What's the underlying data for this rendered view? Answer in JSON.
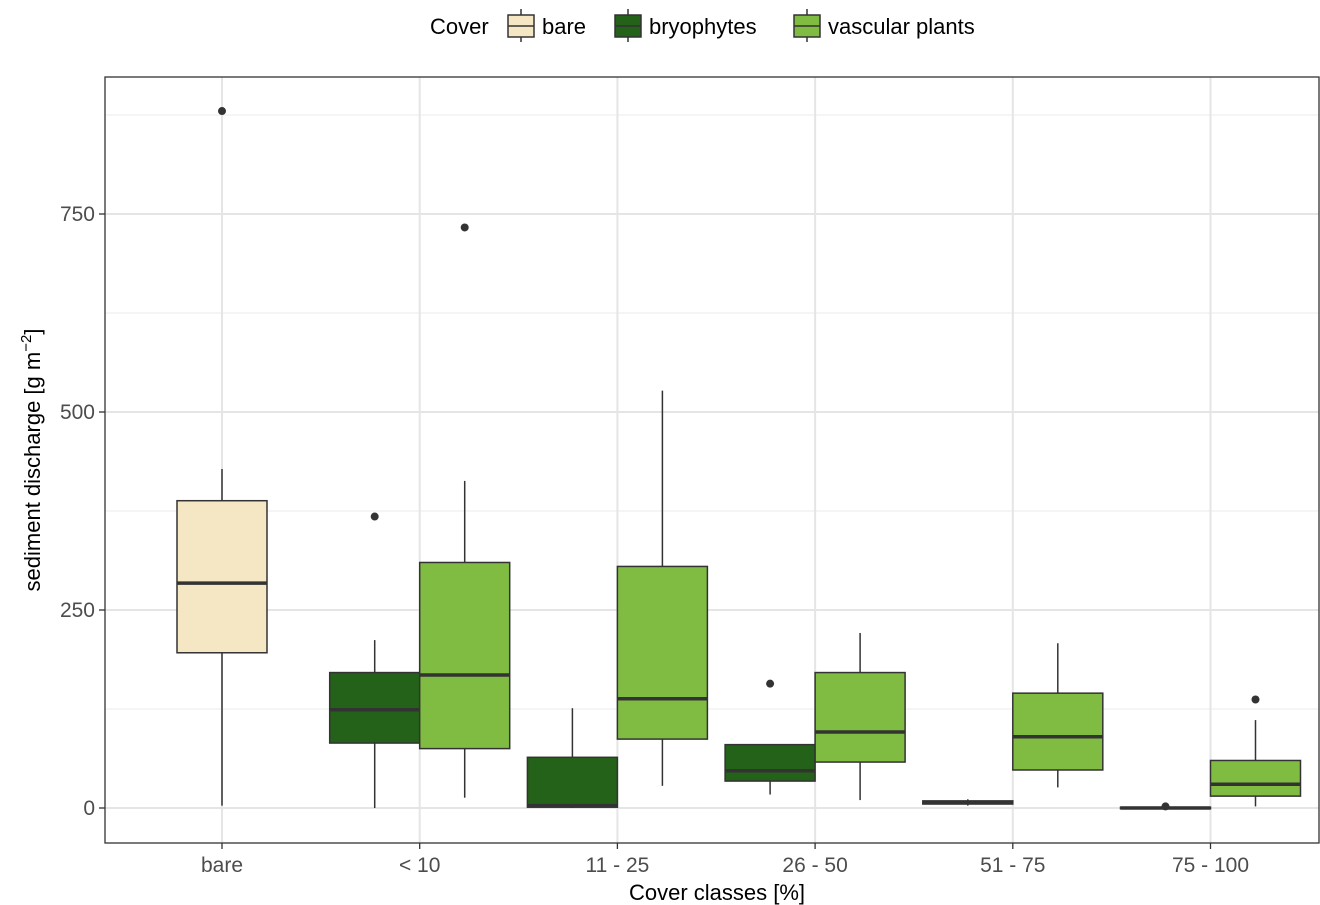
{
  "chart_data": {
    "type": "boxplot",
    "xlabel": "Cover classes [%]",
    "ylabel_main": "sediment discharge [g m",
    "ylabel_sup": "−2",
    "ylabel_close": "]",
    "ylim": [
      -70,
      930
    ],
    "yticks": [
      0,
      250,
      500,
      750
    ],
    "grid": true,
    "legend": {
      "title": "Cover",
      "position": "top",
      "entries": [
        {
          "name": "bare",
          "color": "#F5E6C4"
        },
        {
          "name": "bryophytes",
          "color": "#256219"
        },
        {
          "name": "vascular plants",
          "color": "#80BC42"
        }
      ]
    },
    "categories": [
      "bare",
      "< 10",
      "11 - 25",
      "26 - 50",
      "51 - 75",
      "75 - 100"
    ],
    "boxes": [
      {
        "category": "bare",
        "series": "bare",
        "lower": 3,
        "q1": 196,
        "median": 284,
        "q3": 388,
        "upper": 428,
        "outliers": [
          880
        ]
      },
      {
        "category": "< 10",
        "series": "bryophytes",
        "lower": 0,
        "q1": 82,
        "median": 124,
        "q3": 171,
        "upper": 212,
        "outliers": [
          368
        ]
      },
      {
        "category": "< 10",
        "series": "vascular plants",
        "lower": 13,
        "q1": 75,
        "median": 168,
        "q3": 310,
        "upper": 413,
        "outliers": [
          733
        ]
      },
      {
        "category": "11 - 25",
        "series": "bryophytes",
        "lower": 0,
        "q1": 1,
        "median": 3,
        "q3": 64,
        "upper": 126,
        "outliers": []
      },
      {
        "category": "11 - 25",
        "series": "vascular plants",
        "lower": 28,
        "q1": 87,
        "median": 138,
        "q3": 305,
        "upper": 527,
        "outliers": []
      },
      {
        "category": "26 - 50",
        "series": "bryophytes",
        "lower": 17,
        "q1": 34,
        "median": 47,
        "q3": 80,
        "upper": 80,
        "outliers": [
          157
        ]
      },
      {
        "category": "26 - 50",
        "series": "vascular plants",
        "lower": 10,
        "q1": 58,
        "median": 96,
        "q3": 171,
        "upper": 221,
        "outliers": []
      },
      {
        "category": "51 - 75",
        "series": "bryophytes",
        "lower": 3,
        "q1": 5,
        "median": 7,
        "q3": 9,
        "upper": 11,
        "outliers": []
      },
      {
        "category": "51 - 75",
        "series": "vascular plants",
        "lower": 26,
        "q1": 48,
        "median": 90,
        "q3": 145,
        "upper": 208,
        "outliers": []
      },
      {
        "category": "75 - 100",
        "series": "bryophytes",
        "lower": 0,
        "q1": 0,
        "median": 0,
        "q3": 1,
        "upper": 2,
        "outliers": [
          2
        ]
      },
      {
        "category": "75 - 100",
        "series": "vascular plants",
        "lower": 2,
        "q1": 15,
        "median": 30,
        "q3": 60,
        "upper": 111,
        "outliers": [
          137
        ]
      }
    ]
  }
}
